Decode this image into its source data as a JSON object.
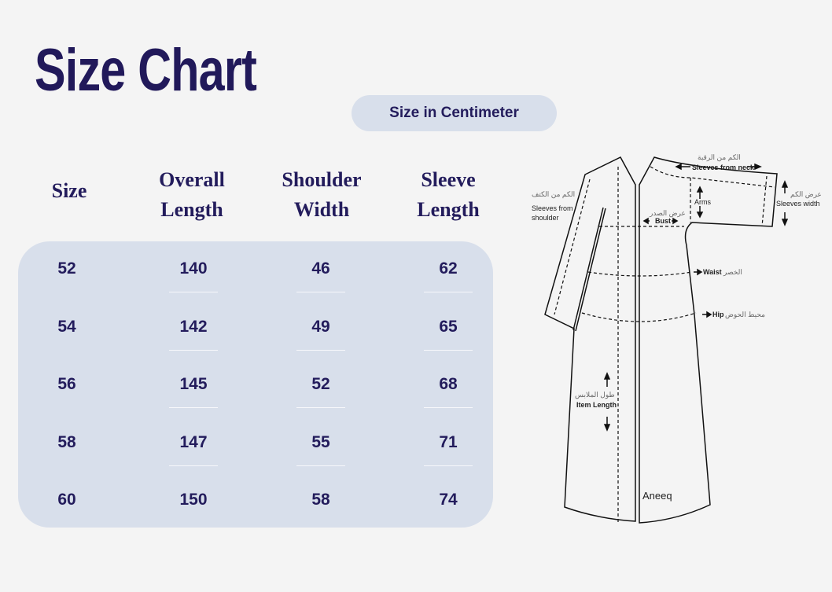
{
  "title": "Size Chart",
  "unit_label": "Size in Centimeter",
  "table": {
    "headers": [
      [
        "Size"
      ],
      [
        "Overall",
        "Length"
      ],
      [
        "Shoulder",
        "Width"
      ],
      [
        "Sleeve",
        "Length"
      ]
    ],
    "rows": [
      [
        "52",
        "140",
        "46",
        "62"
      ],
      [
        "54",
        "142",
        "49",
        "65"
      ],
      [
        "56",
        "145",
        "52",
        "68"
      ],
      [
        "58",
        "147",
        "55",
        "71"
      ],
      [
        "60",
        "150",
        "58",
        "74"
      ]
    ]
  },
  "diagram": {
    "sleeves_from_neck_ar": "الكم من الرقبة",
    "sleeves_from_neck": "Sleeves from neck",
    "sleeves_from_shoulder_ar": "الكم من الكتف",
    "sleeves_from_shoulder": "Sleeves from shoulder",
    "sleeves_width_ar": "عرض الكم",
    "sleeves_width": "Sleeves width",
    "arms": "Arms",
    "bust_ar": "عرض الصدر",
    "bust": "Bust",
    "waist": "Waist",
    "waist_ar": "الخصر",
    "hip": "Hip",
    "hip_ar": "محيط الحوض",
    "item_length_ar": "طول الملابس",
    "item_length": "Item Length",
    "brand": "Aneeq"
  },
  "colors": {
    "text": "#231c5c",
    "panel": "#d8dfeb",
    "background": "#f4f4f4"
  }
}
